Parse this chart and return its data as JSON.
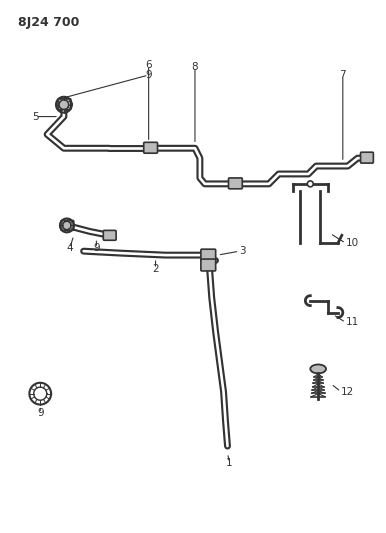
{
  "title": "8J24 700",
  "bg_color": "#ffffff",
  "line_color": "#333333",
  "title_fontsize": 9,
  "label_fontsize": 7.5,
  "figsize": [
    3.86,
    5.33
  ],
  "dpi": 100
}
